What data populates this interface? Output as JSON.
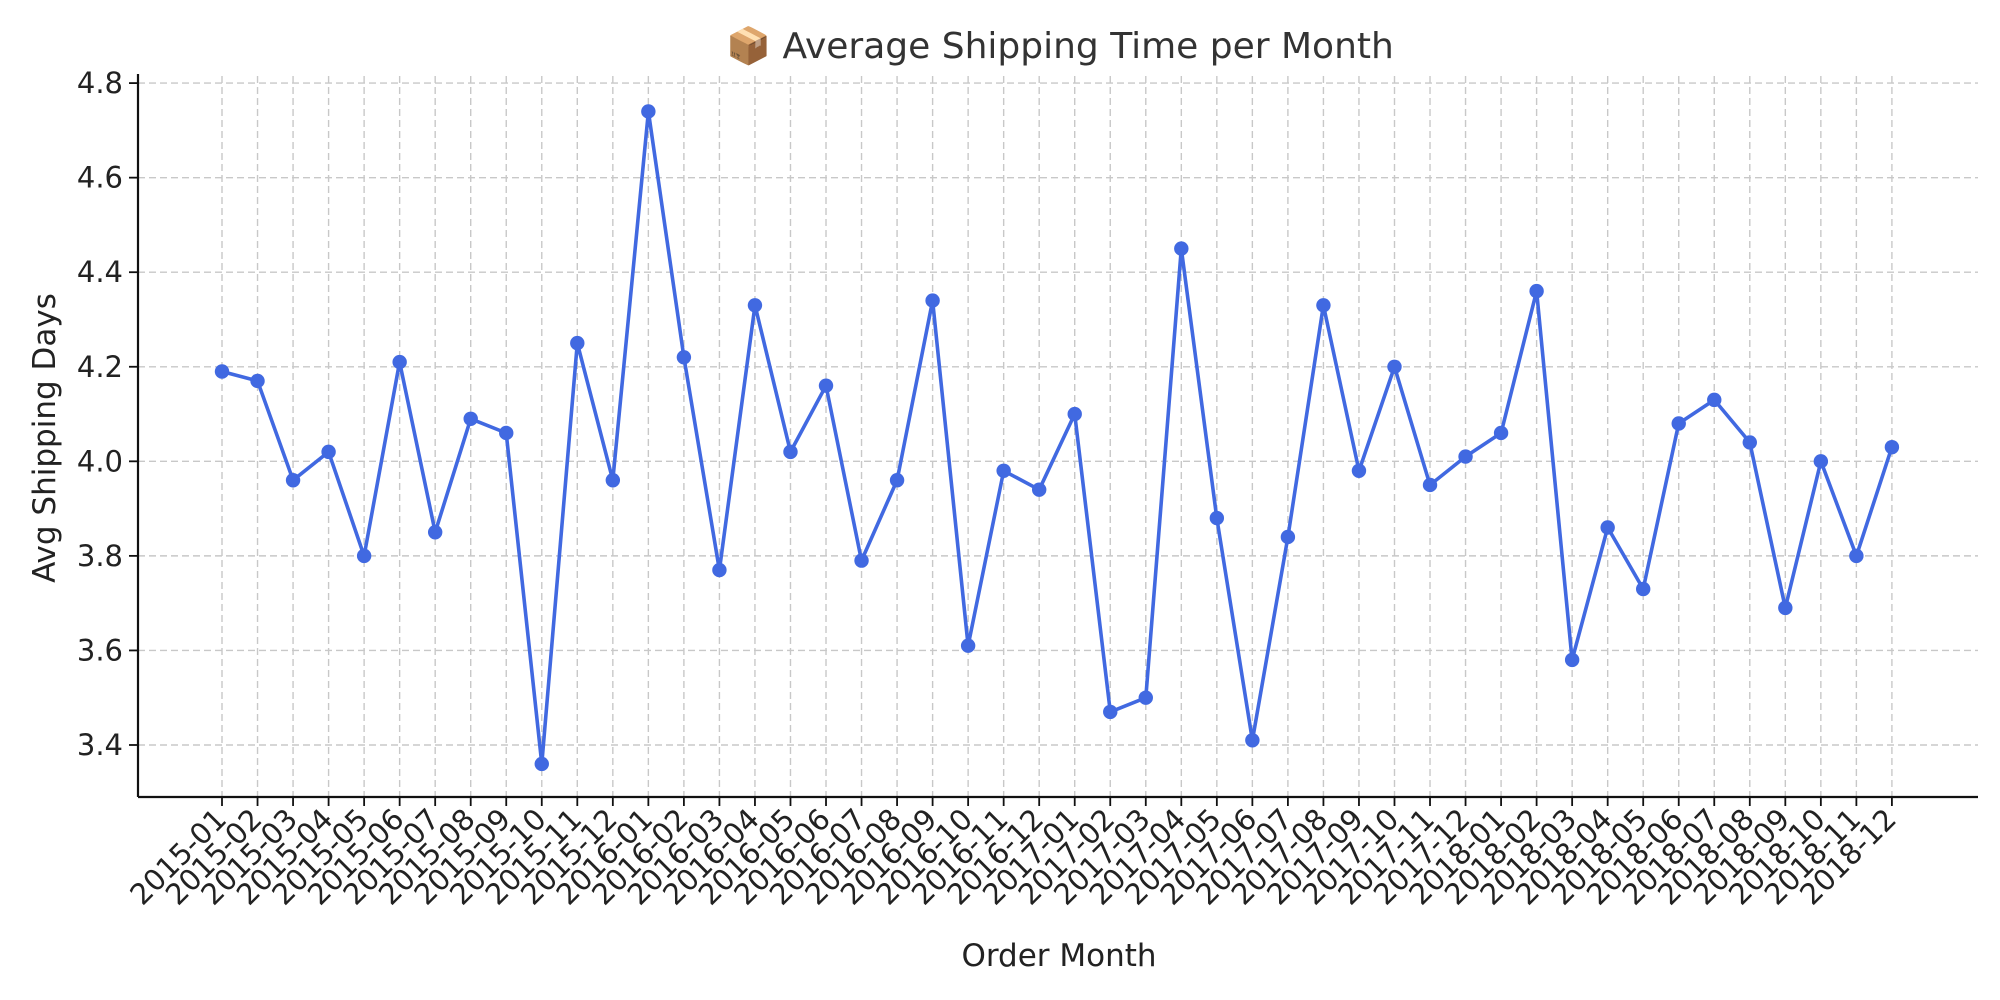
{
  "chart_data": {
    "type": "line",
    "title": "📦 Average Shipping Time per Month",
    "xlabel": "Order Month",
    "ylabel": "Avg Shipping Days",
    "ylim": [
      3.29,
      4.815
    ],
    "yticks": [
      3.4,
      3.6,
      3.8,
      4.0,
      4.2,
      4.4,
      4.6,
      4.8
    ],
    "ytick_labels": [
      "3.4",
      "3.6",
      "3.8",
      "4.0",
      "4.2",
      "4.4",
      "4.6",
      "4.8"
    ],
    "grid": true,
    "line_color": "#4169E1",
    "categories": [
      "2015-01",
      "2015-02",
      "2015-03",
      "2015-04",
      "2015-05",
      "2015-06",
      "2015-07",
      "2015-08",
      "2015-09",
      "2015-10",
      "2015-11",
      "2015-12",
      "2016-01",
      "2016-02",
      "2016-03",
      "2016-04",
      "2016-05",
      "2016-06",
      "2016-07",
      "2016-08",
      "2016-09",
      "2016-10",
      "2016-11",
      "2016-12",
      "2017-01",
      "2017-02",
      "2017-03",
      "2017-04",
      "2017-05",
      "2017-06",
      "2017-07",
      "2017-08",
      "2017-09",
      "2017-10",
      "2017-11",
      "2017-12",
      "2018-01",
      "2018-02",
      "2018-03",
      "2018-04",
      "2018-05",
      "2018-06",
      "2018-07",
      "2018-08",
      "2018-09",
      "2018-10",
      "2018-11",
      "2018-12"
    ],
    "series": [
      {
        "values": [
          4.19,
          4.17,
          3.96,
          4.02,
          3.8,
          4.21,
          3.85,
          4.09,
          4.06,
          3.36,
          4.25,
          3.96,
          4.74,
          4.22,
          3.77,
          4.33,
          4.02,
          4.16,
          3.79,
          3.96,
          4.34,
          3.61,
          3.98,
          3.94,
          4.1,
          3.47,
          3.5,
          4.45,
          3.88,
          3.41,
          3.84,
          4.33,
          3.98,
          4.2,
          3.95,
          4.01,
          4.06,
          4.36,
          3.58,
          3.86,
          3.73,
          4.08,
          4.13,
          4.04,
          3.69,
          4.0,
          3.8,
          4.03
        ]
      }
    ]
  }
}
